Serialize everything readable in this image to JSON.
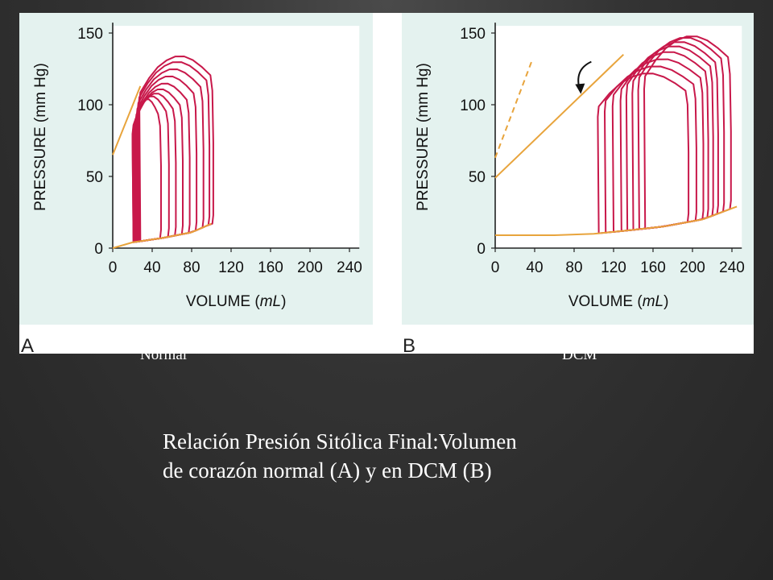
{
  "figure": {
    "panels": [
      {
        "letter": "A",
        "subtitle": "Normal"
      },
      {
        "letter": "B",
        "subtitle": "DCM"
      }
    ]
  },
  "caption": {
    "line1": "Relación Presión Sitólica Final:Volumen",
    "line2": "de corazón normal (A) y en DCM (B)"
  },
  "colors": {
    "panel_bg": "#e4f2ef",
    "loop": "#c8184a",
    "relation": "#e8a43c",
    "axis": "#222222"
  },
  "chart_data": [
    {
      "type": "line",
      "panel": "A",
      "xlabel": "VOLUME (mL)",
      "ylabel": "PRESSURE (mm Hg)",
      "xlim": [
        0,
        250
      ],
      "ylim": [
        0,
        155
      ],
      "x_ticks": [
        0,
        40,
        80,
        120,
        160,
        200,
        240
      ],
      "y_ticks": [
        0,
        50,
        100,
        150
      ],
      "grid": false,
      "end_systolic_pv_relation": [
        [
          0,
          65
        ],
        [
          28,
          113
        ]
      ],
      "end_diastolic_pv_relation": [
        [
          0,
          0
        ],
        [
          20,
          4
        ],
        [
          50,
          7
        ],
        [
          80,
          11
        ],
        [
          100,
          17
        ]
      ],
      "pv_loops": [
        {
          "esv": 21,
          "edv": 48,
          "peak": 104
        },
        {
          "esv": 21,
          "edv": 56,
          "peak": 106
        },
        {
          "esv": 22,
          "edv": 63,
          "peak": 108
        },
        {
          "esv": 23,
          "edv": 70,
          "peak": 111
        },
        {
          "esv": 24,
          "edv": 77,
          "peak": 115
        },
        {
          "esv": 25,
          "edv": 84,
          "peak": 120
        },
        {
          "esv": 26,
          "edv": 91,
          "peak": 125
        },
        {
          "esv": 27,
          "edv": 97,
          "peak": 130
        },
        {
          "esv": 28,
          "edv": 101,
          "peak": 134
        }
      ]
    },
    {
      "type": "line",
      "panel": "B",
      "xlabel": "VOLUME (mL)",
      "ylabel": "PRESSURE (mm Hg)",
      "xlim": [
        0,
        250
      ],
      "ylim": [
        0,
        155
      ],
      "x_ticks": [
        0,
        40,
        80,
        120,
        160,
        200,
        240
      ],
      "y_ticks": [
        0,
        50,
        100,
        150
      ],
      "grid": false,
      "end_systolic_pv_relation": [
        [
          0,
          49
        ],
        [
          130,
          135
        ]
      ],
      "normal_espvr_reference_dashed": [
        [
          0,
          63
        ],
        [
          38,
          132
        ]
      ],
      "end_diastolic_pv_relation": [
        [
          0,
          9
        ],
        [
          60,
          9
        ],
        [
          100,
          10
        ],
        [
          130,
          12
        ],
        [
          170,
          15
        ],
        [
          210,
          20
        ],
        [
          245,
          29
        ]
      ],
      "annotation": "curved arrow (downward shift)",
      "pv_loops": [
        {
          "esv": 105,
          "edv": 195,
          "peak": 122
        },
        {
          "esv": 112,
          "edv": 203,
          "peak": 127
        },
        {
          "esv": 120,
          "edv": 210,
          "peak": 132
        },
        {
          "esv": 128,
          "edv": 215,
          "peak": 137
        },
        {
          "esv": 134,
          "edv": 220,
          "peak": 141
        },
        {
          "esv": 140,
          "edv": 225,
          "peak": 144
        },
        {
          "esv": 146,
          "edv": 231,
          "peak": 147
        },
        {
          "esv": 152,
          "edv": 238,
          "peak": 148
        }
      ]
    }
  ]
}
